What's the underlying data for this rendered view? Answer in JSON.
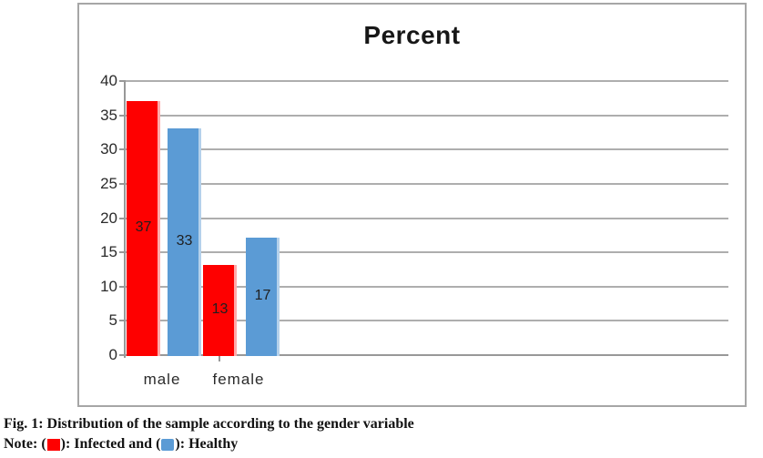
{
  "chart_data": {
    "type": "bar",
    "title": "Percent",
    "categories": [
      "male",
      "female"
    ],
    "series": [
      {
        "name": "Infected",
        "color": "#fe0000",
        "edge_color": "#ffaaaa",
        "values": [
          37,
          13
        ]
      },
      {
        "name": "Healthy",
        "color": "#5b9bd5",
        "edge_color": "#b4d1eb",
        "values": [
          33,
          17
        ]
      }
    ],
    "xlabel": "",
    "ylabel": "",
    "ylim": [
      0,
      40
    ],
    "yticks": [
      0,
      5,
      10,
      15,
      20,
      25,
      30,
      35,
      40
    ],
    "grid": true,
    "data_labels": true,
    "legend_position": "none"
  },
  "caption": {
    "figure_line": "Fig. 1: Distribution of the sample according to the gender variable",
    "note": {
      "prefix": "Note: (",
      "between": "): Infected and (",
      "suffix": "): Healthy",
      "infected_color": "#fe0000",
      "healthy_color": "#5b9bd5"
    }
  },
  "colors": {
    "gridline": "#aeaeae",
    "axis": "#989898",
    "chart_border": "#a6a6a6",
    "title_text": "#171717"
  }
}
